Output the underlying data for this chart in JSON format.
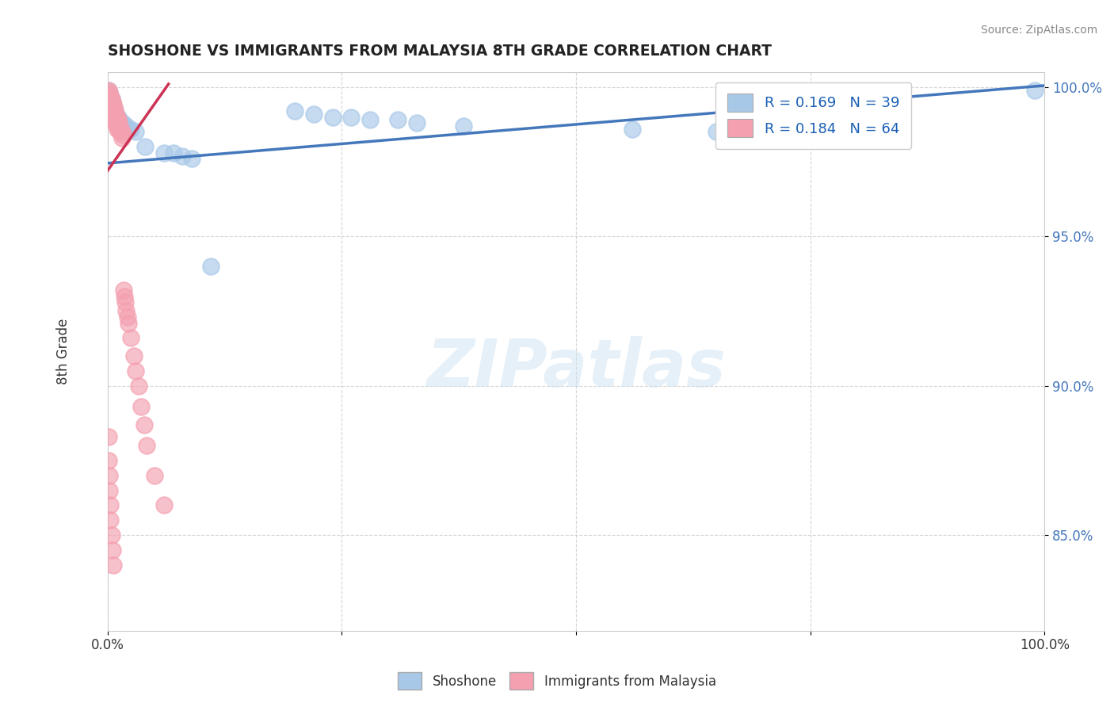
{
  "title": "SHOSHONE VS IMMIGRANTS FROM MALAYSIA 8TH GRADE CORRELATION CHART",
  "source_text": "Source: ZipAtlas.com",
  "ylabel": "8th Grade",
  "xlim": [
    0,
    1.0
  ],
  "ylim": [
    0.818,
    1.005
  ],
  "ytick_positions": [
    0.85,
    0.9,
    0.95,
    1.0
  ],
  "ytick_labels": [
    "85.0%",
    "90.0%",
    "95.0%",
    "100.0%"
  ],
  "watermark": "ZIPatlas",
  "legend_R1": "R = 0.169",
  "legend_N1": "N = 39",
  "legend_R2": "R = 0.184",
  "legend_N2": "N = 64",
  "shoshone_color": "#a8c8e8",
  "malaysia_color": "#f4a0b0",
  "trend_blue_color": "#4477bb",
  "trend_red_color": "#cc3355",
  "shoshone_x": [
    0.001,
    0.002,
    0.002,
    0.003,
    0.003,
    0.004,
    0.004,
    0.005,
    0.005,
    0.006,
    0.007,
    0.008,
    0.009,
    0.01,
    0.011,
    0.012,
    0.014,
    0.016,
    0.018,
    0.02,
    0.025,
    0.03,
    0.04,
    0.06,
    0.07,
    0.08,
    0.09,
    0.11,
    0.2,
    0.22,
    0.24,
    0.26,
    0.28,
    0.31,
    0.33,
    0.38,
    0.56,
    0.65,
    0.99
  ],
  "shoshone_y": [
    0.999,
    0.998,
    0.997,
    0.997,
    0.996,
    0.996,
    0.995,
    0.995,
    0.994,
    0.993,
    0.993,
    0.992,
    0.991,
    0.99,
    0.99,
    0.989,
    0.988,
    0.988,
    0.987,
    0.987,
    0.986,
    0.985,
    0.98,
    0.978,
    0.978,
    0.977,
    0.976,
    0.94,
    0.992,
    0.991,
    0.99,
    0.99,
    0.989,
    0.989,
    0.988,
    0.987,
    0.986,
    0.985,
    0.999
  ],
  "malaysia_x": [
    0.001,
    0.001,
    0.001,
    0.002,
    0.002,
    0.002,
    0.002,
    0.003,
    0.003,
    0.003,
    0.004,
    0.004,
    0.004,
    0.005,
    0.005,
    0.005,
    0.006,
    0.006,
    0.006,
    0.007,
    0.007,
    0.007,
    0.008,
    0.008,
    0.008,
    0.009,
    0.009,
    0.01,
    0.01,
    0.01,
    0.011,
    0.011,
    0.012,
    0.012,
    0.013,
    0.013,
    0.014,
    0.015,
    0.015,
    0.016,
    0.017,
    0.018,
    0.019,
    0.02,
    0.021,
    0.022,
    0.025,
    0.028,
    0.03,
    0.033,
    0.036,
    0.039,
    0.042,
    0.05,
    0.06,
    0.001,
    0.001,
    0.002,
    0.002,
    0.003,
    0.003,
    0.004,
    0.005,
    0.006
  ],
  "malaysia_y": [
    0.999,
    0.997,
    0.996,
    0.998,
    0.996,
    0.994,
    0.992,
    0.997,
    0.995,
    0.993,
    0.996,
    0.994,
    0.992,
    0.995,
    0.993,
    0.991,
    0.994,
    0.992,
    0.99,
    0.993,
    0.991,
    0.989,
    0.992,
    0.99,
    0.988,
    0.991,
    0.989,
    0.99,
    0.988,
    0.986,
    0.989,
    0.987,
    0.988,
    0.986,
    0.987,
    0.985,
    0.986,
    0.985,
    0.983,
    0.984,
    0.932,
    0.93,
    0.928,
    0.925,
    0.923,
    0.921,
    0.916,
    0.91,
    0.905,
    0.9,
    0.893,
    0.887,
    0.88,
    0.87,
    0.86,
    0.883,
    0.875,
    0.87,
    0.865,
    0.86,
    0.855,
    0.85,
    0.845,
    0.84
  ],
  "blue_trend_x0": 0.0,
  "blue_trend_y0": 0.9745,
  "blue_trend_x1": 1.0,
  "blue_trend_y1": 1.0005,
  "red_trend_x0": 0.0,
  "red_trend_y0": 0.972,
  "red_trend_x1": 0.065,
  "red_trend_y1": 1.001
}
